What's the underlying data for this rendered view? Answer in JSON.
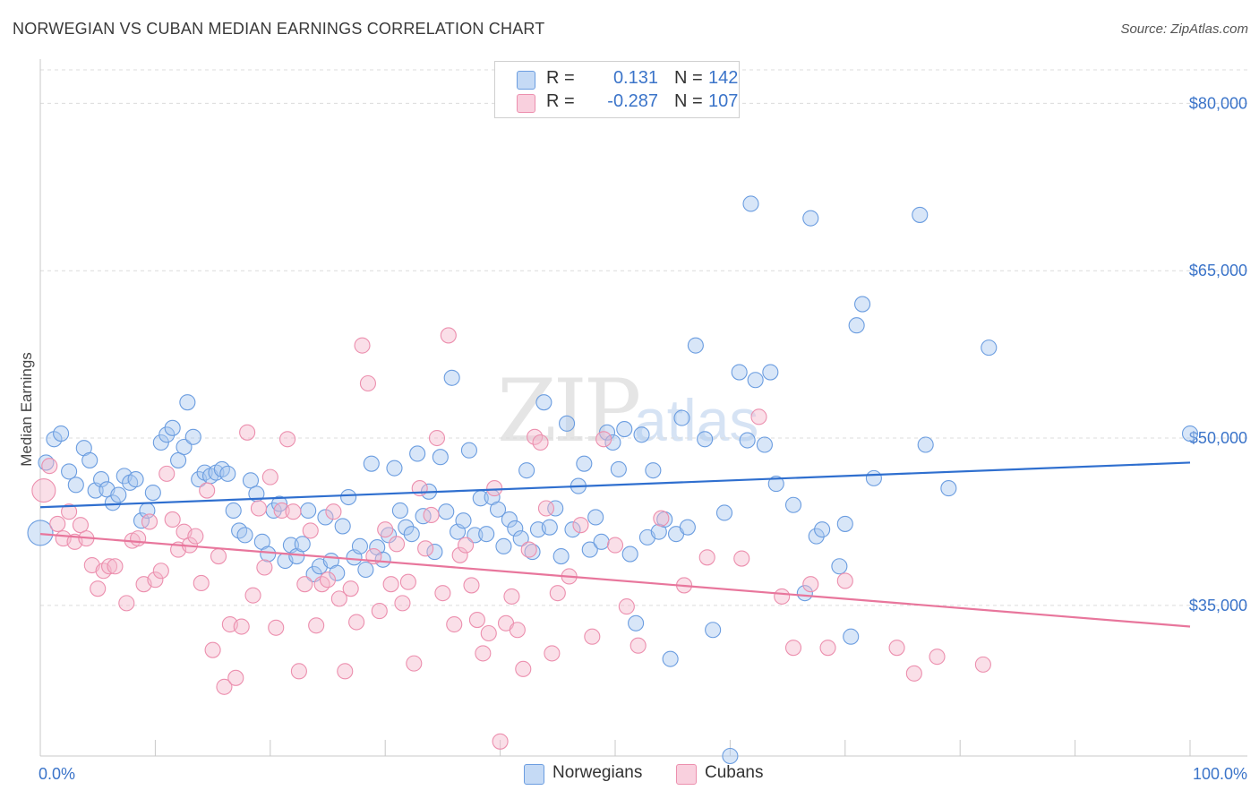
{
  "header": {
    "title": "NORWEGIAN VS CUBAN MEDIAN EARNINGS CORRELATION CHART",
    "source": "Source: ZipAtlas.com"
  },
  "legend": {
    "rows": [
      {
        "r_label": "R =",
        "r_value": "0.131",
        "n_label": "N =",
        "n_value": "142",
        "color": "#a9c8f0"
      },
      {
        "r_label": "R =",
        "r_value": "-0.287",
        "n_label": "N =",
        "n_value": "107",
        "color": "#f5b8cc"
      }
    ]
  },
  "bottom_legend": {
    "items": [
      {
        "label": "Norwegians",
        "color": "#a9c8f0"
      },
      {
        "label": "Cubans",
        "color": "#f5b8cc"
      }
    ]
  },
  "chart_data": {
    "type": "scatter",
    "title": "NORWEGIAN VS CUBAN MEDIAN EARNINGS CORRELATION CHART",
    "ylabel": "Median Earnings",
    "xlabel": "",
    "x_tick_labels": [
      "0.0%",
      "100.0%"
    ],
    "y_tick_labels": [
      "$35,000",
      "$50,000",
      "$65,000",
      "$80,000"
    ],
    "y_ticks": [
      35000,
      50000,
      65000,
      80000
    ],
    "xlim": [
      0,
      100
    ],
    "ylim": [
      21500,
      83000
    ],
    "grid": "horizontal dashed",
    "watermark": "ZIPatlas",
    "series": [
      {
        "name": "Norwegians",
        "color": "#6b9de0",
        "fill": "#a9c8f0",
        "r": 0.131,
        "n": 142,
        "trend": {
          "x": [
            0,
            100
          ],
          "y": [
            43800,
            47800
          ],
          "color": "#2f6fcf"
        },
        "points": [
          [
            0,
            41500
          ],
          [
            0.5,
            47800
          ],
          [
            1.2,
            49900
          ],
          [
            1.8,
            50400
          ],
          [
            2.5,
            47000
          ],
          [
            3.1,
            45800
          ],
          [
            3.8,
            49100
          ],
          [
            4.3,
            48000
          ],
          [
            4.8,
            45300
          ],
          [
            5.3,
            46300
          ],
          [
            5.8,
            45400
          ],
          [
            6.3,
            44200
          ],
          [
            6.8,
            44900
          ],
          [
            7.3,
            46600
          ],
          [
            7.8,
            46000
          ],
          [
            8.3,
            46300
          ],
          [
            8.8,
            42600
          ],
          [
            9.3,
            43500
          ],
          [
            9.8,
            45100
          ],
          [
            10.5,
            49600
          ],
          [
            11.0,
            50300
          ],
          [
            11.5,
            50900
          ],
          [
            12.0,
            48000
          ],
          [
            12.5,
            49200
          ],
          [
            12.8,
            53200
          ],
          [
            13.3,
            50100
          ],
          [
            13.8,
            46300
          ],
          [
            14.3,
            46900
          ],
          [
            14.8,
            46600
          ],
          [
            15.3,
            46900
          ],
          [
            15.8,
            47200
          ],
          [
            16.3,
            46800
          ],
          [
            16.8,
            43500
          ],
          [
            17.3,
            41700
          ],
          [
            17.8,
            41300
          ],
          [
            18.3,
            46200
          ],
          [
            18.8,
            45000
          ],
          [
            19.3,
            40700
          ],
          [
            19.8,
            39600
          ],
          [
            20.3,
            43500
          ],
          [
            20.8,
            44100
          ],
          [
            21.3,
            39000
          ],
          [
            21.8,
            40400
          ],
          [
            22.3,
            39400
          ],
          [
            22.8,
            40500
          ],
          [
            23.3,
            43500
          ],
          [
            23.8,
            37800
          ],
          [
            24.3,
            38500
          ],
          [
            24.8,
            42900
          ],
          [
            25.3,
            39000
          ],
          [
            25.8,
            37900
          ],
          [
            26.3,
            42100
          ],
          [
            26.8,
            44700
          ],
          [
            27.3,
            39300
          ],
          [
            27.8,
            40300
          ],
          [
            28.3,
            38200
          ],
          [
            28.8,
            47700
          ],
          [
            29.3,
            40200
          ],
          [
            29.8,
            39100
          ],
          [
            30.3,
            41300
          ],
          [
            30.8,
            47300
          ],
          [
            31.3,
            43500
          ],
          [
            31.8,
            42000
          ],
          [
            32.3,
            41400
          ],
          [
            32.8,
            48600
          ],
          [
            33.3,
            43000
          ],
          [
            33.8,
            45200
          ],
          [
            34.3,
            39800
          ],
          [
            34.8,
            48300
          ],
          [
            35.3,
            43400
          ],
          [
            35.8,
            55400
          ],
          [
            36.3,
            41600
          ],
          [
            36.8,
            42600
          ],
          [
            37.3,
            48900
          ],
          [
            37.8,
            41300
          ],
          [
            38.3,
            44600
          ],
          [
            38.8,
            41400
          ],
          [
            39.3,
            44700
          ],
          [
            39.8,
            43600
          ],
          [
            40.3,
            40300
          ],
          [
            40.8,
            42700
          ],
          [
            41.3,
            41900
          ],
          [
            41.8,
            41000
          ],
          [
            42.3,
            47100
          ],
          [
            42.8,
            39800
          ],
          [
            43.3,
            41800
          ],
          [
            43.8,
            53200
          ],
          [
            44.3,
            42000
          ],
          [
            44.8,
            43700
          ],
          [
            45.3,
            39400
          ],
          [
            45.8,
            51300
          ],
          [
            46.3,
            41800
          ],
          [
            46.8,
            45700
          ],
          [
            47.3,
            47700
          ],
          [
            47.8,
            40000
          ],
          [
            48.3,
            42900
          ],
          [
            48.8,
            40700
          ],
          [
            49.3,
            50500
          ],
          [
            49.8,
            49600
          ],
          [
            50.3,
            47200
          ],
          [
            50.8,
            50800
          ],
          [
            51.3,
            39600
          ],
          [
            51.8,
            33400
          ],
          [
            52.3,
            50300
          ],
          [
            52.8,
            41100
          ],
          [
            53.3,
            47100
          ],
          [
            53.8,
            41600
          ],
          [
            54.3,
            42700
          ],
          [
            54.8,
            30200
          ],
          [
            55.3,
            41400
          ],
          [
            55.8,
            51800
          ],
          [
            56.3,
            42000
          ],
          [
            57.0,
            58300
          ],
          [
            57.8,
            49900
          ],
          [
            58.5,
            32800
          ],
          [
            59.5,
            43300
          ],
          [
            60.0,
            21500
          ],
          [
            60.8,
            55900
          ],
          [
            61.5,
            49800
          ],
          [
            61.8,
            71000
          ],
          [
            62.2,
            55200
          ],
          [
            63.0,
            49400
          ],
          [
            63.5,
            55900
          ],
          [
            64.0,
            45900
          ],
          [
            65.5,
            44000
          ],
          [
            66.5,
            36100
          ],
          [
            67.0,
            69700
          ],
          [
            67.5,
            41200
          ],
          [
            68.0,
            41800
          ],
          [
            69.5,
            38500
          ],
          [
            70.0,
            42300
          ],
          [
            70.5,
            32200
          ],
          [
            71.0,
            60100
          ],
          [
            71.5,
            62000
          ],
          [
            72.5,
            46400
          ],
          [
            76.5,
            70000
          ],
          [
            77.0,
            49400
          ],
          [
            79.0,
            45500
          ],
          [
            82.5,
            58100
          ],
          [
            100,
            50400
          ]
        ]
      },
      {
        "name": "Cubans",
        "color": "#ec8fae",
        "fill": "#f5b8cc",
        "r": -0.287,
        "n": 107,
        "trend": {
          "x": [
            0,
            100
          ],
          "y": [
            41400,
            33100
          ],
          "color": "#e8769c"
        },
        "points": [
          [
            0.3,
            45300
          ],
          [
            0.8,
            47500
          ],
          [
            1.5,
            42300
          ],
          [
            2.0,
            41000
          ],
          [
            2.5,
            43400
          ],
          [
            3.0,
            40700
          ],
          [
            3.5,
            42200
          ],
          [
            4.0,
            41000
          ],
          [
            4.5,
            38600
          ],
          [
            5.0,
            36500
          ],
          [
            5.5,
            38100
          ],
          [
            6.0,
            38500
          ],
          [
            6.5,
            38500
          ],
          [
            7.5,
            35200
          ],
          [
            8.0,
            40800
          ],
          [
            8.5,
            41000
          ],
          [
            9.0,
            36900
          ],
          [
            9.5,
            42500
          ],
          [
            10.0,
            37300
          ],
          [
            10.5,
            38100
          ],
          [
            11.0,
            46800
          ],
          [
            11.5,
            42700
          ],
          [
            12.0,
            40000
          ],
          [
            12.5,
            41600
          ],
          [
            13.0,
            40400
          ],
          [
            13.5,
            41200
          ],
          [
            14.0,
            37000
          ],
          [
            14.5,
            45300
          ],
          [
            15.0,
            31000
          ],
          [
            15.5,
            39400
          ],
          [
            16.0,
            27700
          ],
          [
            16.5,
            33300
          ],
          [
            17.0,
            28500
          ],
          [
            17.5,
            33100
          ],
          [
            18.0,
            50500
          ],
          [
            18.5,
            35900
          ],
          [
            19.0,
            43700
          ],
          [
            19.5,
            38400
          ],
          [
            20.0,
            46500
          ],
          [
            20.5,
            33000
          ],
          [
            21.0,
            43500
          ],
          [
            21.5,
            49900
          ],
          [
            22.0,
            43400
          ],
          [
            22.5,
            29100
          ],
          [
            23.0,
            36900
          ],
          [
            23.5,
            41700
          ],
          [
            24.0,
            33200
          ],
          [
            24.5,
            36900
          ],
          [
            25.0,
            37300
          ],
          [
            25.5,
            43400
          ],
          [
            26.0,
            35600
          ],
          [
            26.5,
            29100
          ],
          [
            27.0,
            36500
          ],
          [
            27.5,
            33500
          ],
          [
            28.0,
            58300
          ],
          [
            28.5,
            54900
          ],
          [
            29.0,
            39400
          ],
          [
            29.5,
            34500
          ],
          [
            30.0,
            41800
          ],
          [
            30.5,
            36900
          ],
          [
            31.0,
            40500
          ],
          [
            31.5,
            35200
          ],
          [
            32.0,
            37100
          ],
          [
            32.5,
            29800
          ],
          [
            33.0,
            45500
          ],
          [
            33.5,
            40100
          ],
          [
            34.0,
            43100
          ],
          [
            34.5,
            50000
          ],
          [
            35.0,
            36100
          ],
          [
            35.5,
            59200
          ],
          [
            36.0,
            33300
          ],
          [
            36.5,
            39500
          ],
          [
            37.0,
            40400
          ],
          [
            37.5,
            36800
          ],
          [
            38.0,
            33700
          ],
          [
            38.5,
            30700
          ],
          [
            39.0,
            32500
          ],
          [
            39.5,
            45500
          ],
          [
            40.0,
            22800
          ],
          [
            40.5,
            33400
          ],
          [
            41.0,
            35800
          ],
          [
            41.5,
            32800
          ],
          [
            42.0,
            29300
          ],
          [
            42.5,
            40000
          ],
          [
            43.0,
            50100
          ],
          [
            43.5,
            49600
          ],
          [
            44.0,
            43700
          ],
          [
            44.5,
            30700
          ],
          [
            45.0,
            36100
          ],
          [
            46.0,
            37600
          ],
          [
            47.0,
            42200
          ],
          [
            48.0,
            32200
          ],
          [
            49.0,
            49900
          ],
          [
            50.0,
            40400
          ],
          [
            51.0,
            34900
          ],
          [
            52.0,
            31400
          ],
          [
            54.0,
            42800
          ],
          [
            56.0,
            36800
          ],
          [
            58.0,
            39300
          ],
          [
            61.0,
            39200
          ],
          [
            62.5,
            51900
          ],
          [
            64.5,
            35800
          ],
          [
            65.5,
            31200
          ],
          [
            67.0,
            36900
          ],
          [
            68.5,
            31200
          ],
          [
            70.0,
            37200
          ],
          [
            74.5,
            31200
          ],
          [
            76.0,
            28900
          ],
          [
            78.0,
            30400
          ],
          [
            82.0,
            29700
          ]
        ]
      }
    ]
  }
}
